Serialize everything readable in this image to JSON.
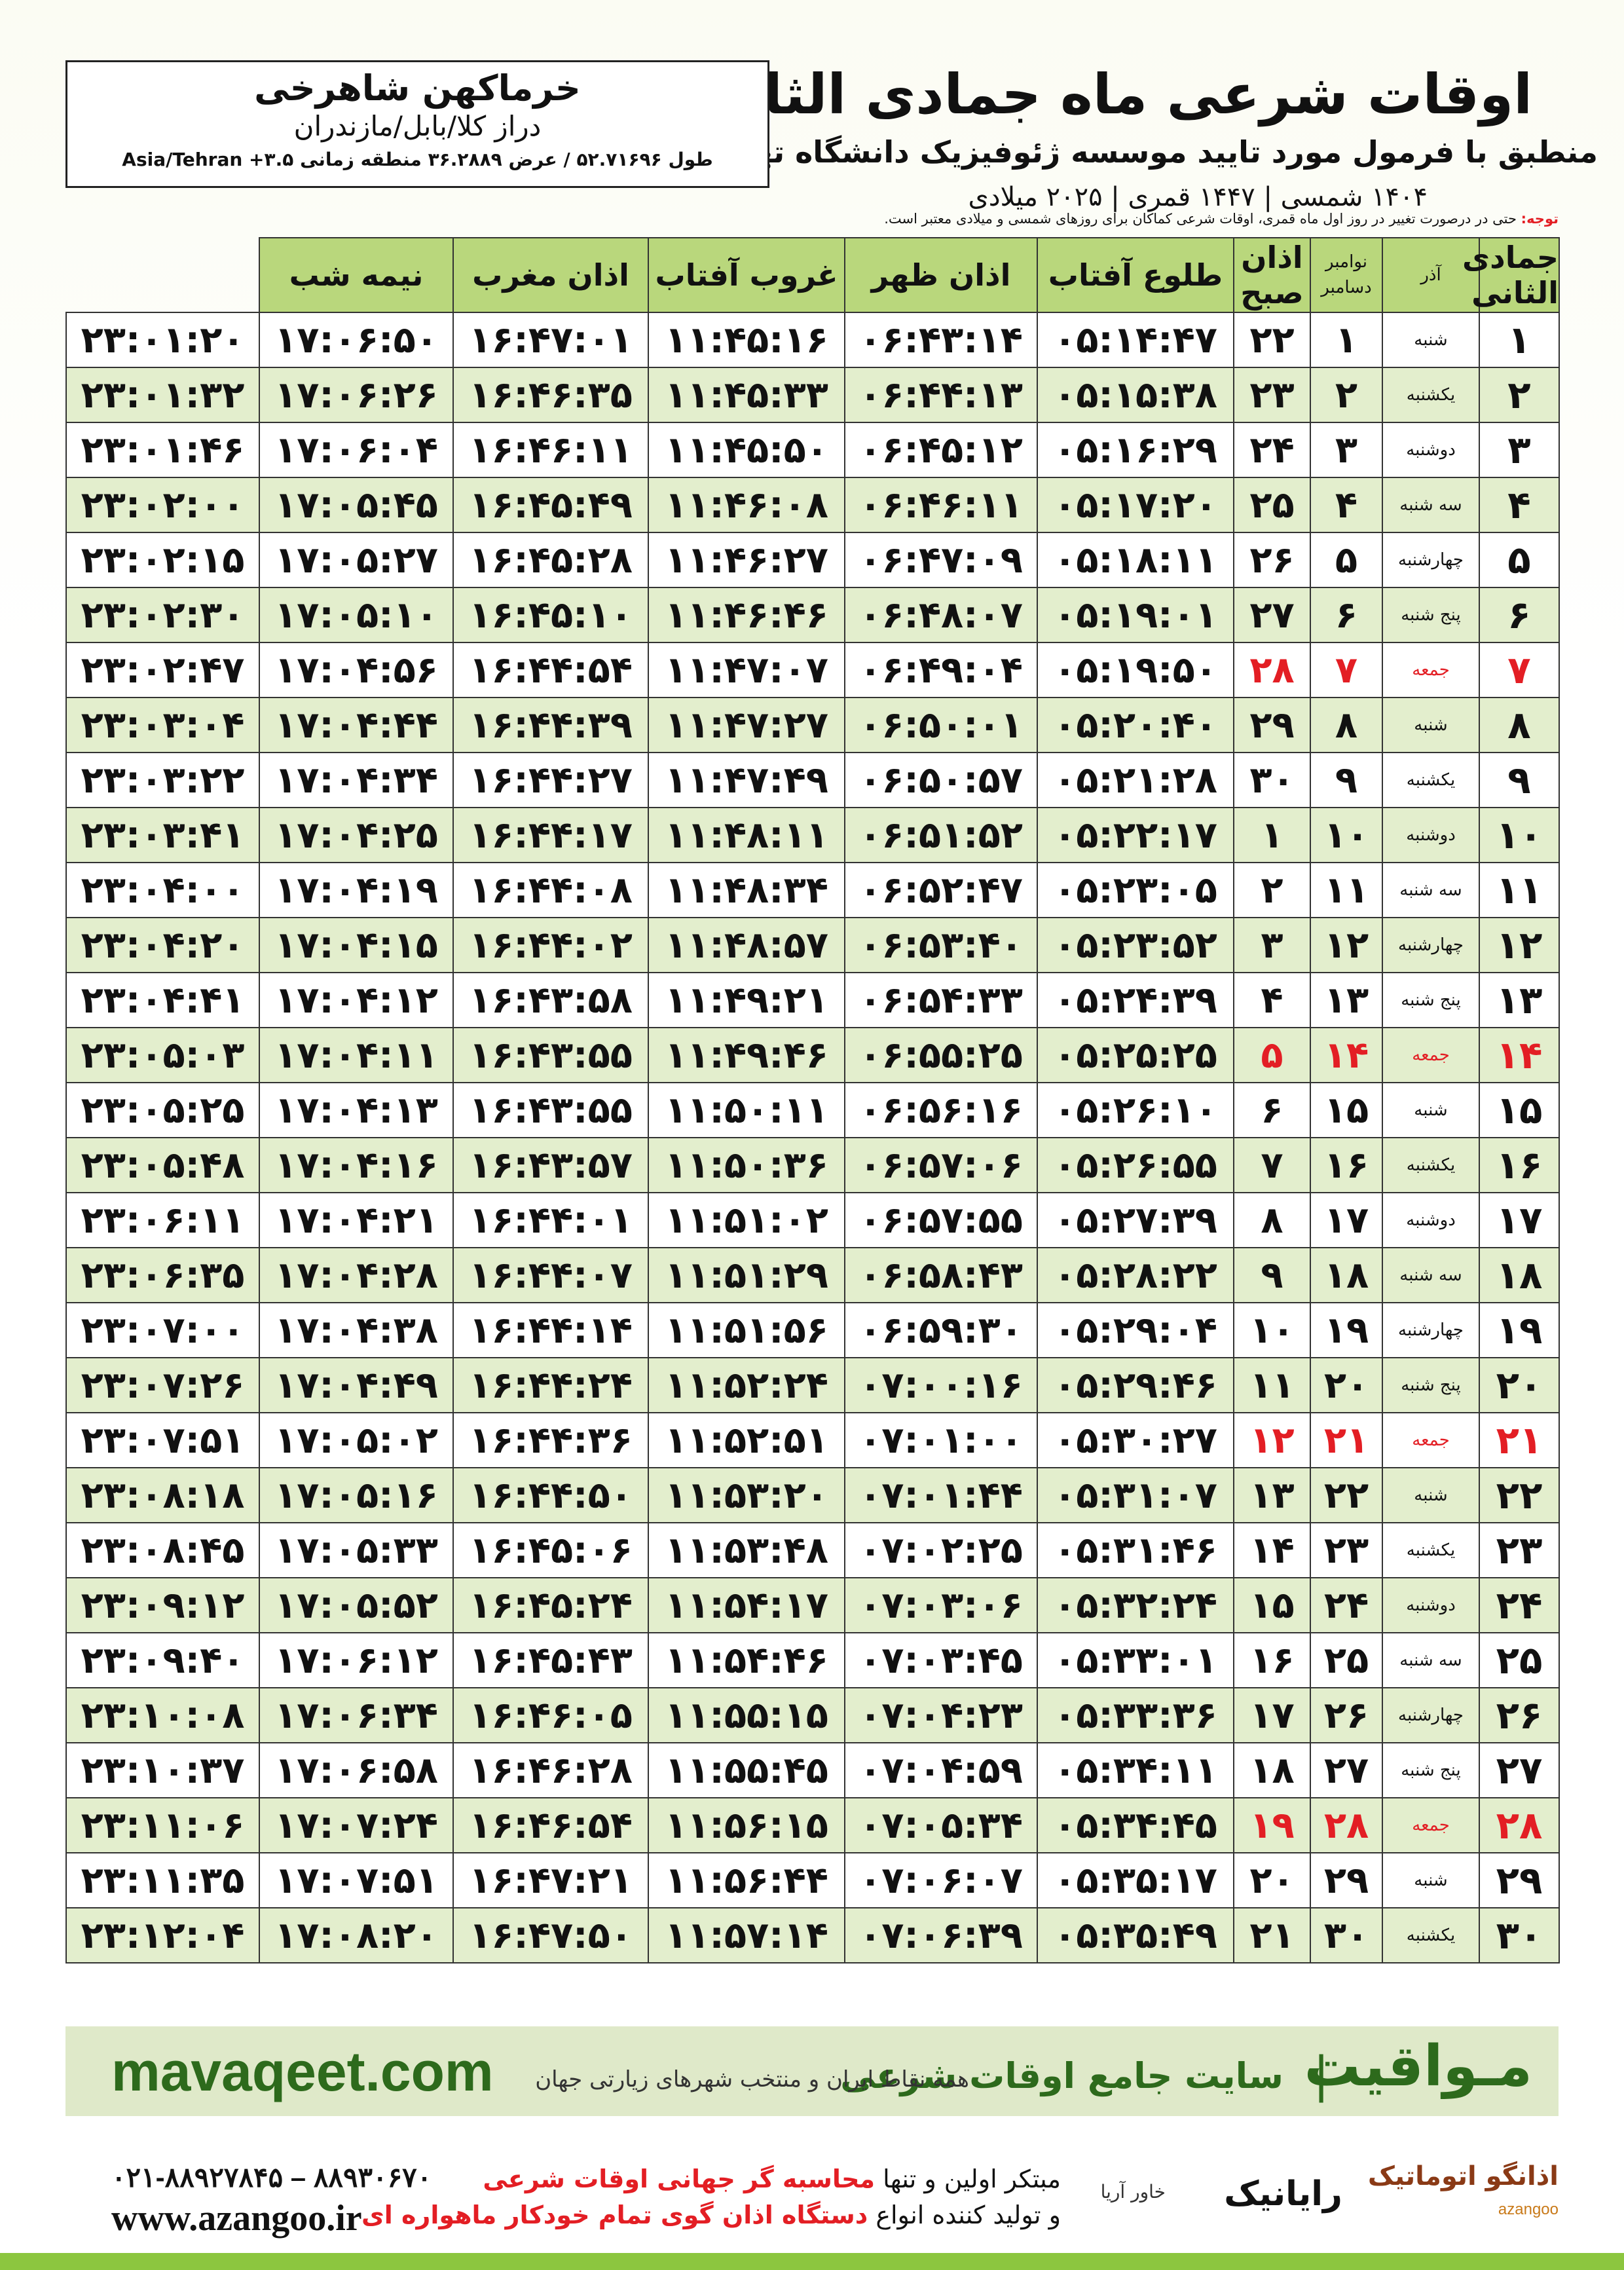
{
  "header": {
    "title": "اوقات شرعی ماه جمادی الثانی",
    "subtitle": "منطبق با فرمول مورد تایید موسسه ژئوفیزیک دانشگاه تهران",
    "years": "۱۴۰۴ شمسی | ۱۴۴۷ قمری | ۲۰۲۵ میلادی"
  },
  "location": {
    "city": "خرماکهن شاهرخی",
    "region": "دراز کلا/بابل/مازندران",
    "coords": "طول ۵۲.۷۱۶۹۶ / عرض ۳۶.۲۸۸۹ منطقه زمانی ۳.۵+ Asia/Tehran"
  },
  "note": {
    "label": "توجه:",
    "text": "حتی در درصورت تغییر در روز اول ماه قمری، اوقات شرعی کماکان برای روزهای شمسی و میلادی معتبر است."
  },
  "table": {
    "headers": [
      "جمادی الثانی",
      "آذر",
      [
        "نوامبر",
        "دسامبر"
      ],
      "اذان صبح",
      "طلوع آفتاب",
      "اذان ظهر",
      "غروب آفتاب",
      "اذان مغرب",
      "نیمه شب"
    ],
    "rows": [
      {
        "cells": [
          "۱",
          "شنبه",
          "۱",
          "۲۲",
          "۰۵:۱۴:۴۷",
          "۰۶:۴۳:۱۴",
          "۱۱:۴۵:۱۶",
          "۱۶:۴۷:۰۱",
          "۱۷:۰۶:۵۰",
          "۲۳:۰۱:۲۰"
        ]
      },
      {
        "cells": [
          "۲",
          "یکشنبه",
          "۲",
          "۲۳",
          "۰۵:۱۵:۳۸",
          "۰۶:۴۴:۱۳",
          "۱۱:۴۵:۳۳",
          "۱۶:۴۶:۳۵",
          "۱۷:۰۶:۲۶",
          "۲۳:۰۱:۳۲"
        ]
      },
      {
        "cells": [
          "۳",
          "دوشنبه",
          "۳",
          "۲۴",
          "۰۵:۱۶:۲۹",
          "۰۶:۴۵:۱۲",
          "۱۱:۴۵:۵۰",
          "۱۶:۴۶:۱۱",
          "۱۷:۰۶:۰۴",
          "۲۳:۰۱:۴۶"
        ]
      },
      {
        "cells": [
          "۴",
          "سه شنبه",
          "۴",
          "۲۵",
          "۰۵:۱۷:۲۰",
          "۰۶:۴۶:۱۱",
          "۱۱:۴۶:۰۸",
          "۱۶:۴۵:۴۹",
          "۱۷:۰۵:۴۵",
          "۲۳:۰۲:۰۰"
        ]
      },
      {
        "cells": [
          "۵",
          "چهارشنبه",
          "۵",
          "۲۶",
          "۰۵:۱۸:۱۱",
          "۰۶:۴۷:۰۹",
          "۱۱:۴۶:۲۷",
          "۱۶:۴۵:۲۸",
          "۱۷:۰۵:۲۷",
          "۲۳:۰۲:۱۵"
        ]
      },
      {
        "cells": [
          "۶",
          "پنج شنبه",
          "۶",
          "۲۷",
          "۰۵:۱۹:۰۱",
          "۰۶:۴۸:۰۷",
          "۱۱:۴۶:۴۶",
          "۱۶:۴۵:۱۰",
          "۱۷:۰۵:۱۰",
          "۲۳:۰۲:۳۰"
        ]
      },
      {
        "cells": [
          "۷",
          "جمعه",
          "۷",
          "۲۸",
          "۰۵:۱۹:۵۰",
          "۰۶:۴۹:۰۴",
          "۱۱:۴۷:۰۷",
          "۱۶:۴۴:۵۴",
          "۱۷:۰۴:۵۶",
          "۲۳:۰۲:۴۷"
        ],
        "color": "#e31e24"
      },
      {
        "cells": [
          "۸",
          "شنبه",
          "۸",
          "۲۹",
          "۰۵:۲۰:۴۰",
          "۰۶:۵۰:۰۱",
          "۱۱:۴۷:۲۷",
          "۱۶:۴۴:۳۹",
          "۱۷:۰۴:۴۴",
          "۲۳:۰۳:۰۴"
        ]
      },
      {
        "cells": [
          "۹",
          "یکشنبه",
          "۹",
          "۳۰",
          "۰۵:۲۱:۲۸",
          "۰۶:۵۰:۵۷",
          "۱۱:۴۷:۴۹",
          "۱۶:۴۴:۲۷",
          "۱۷:۰۴:۳۴",
          "۲۳:۰۳:۲۲"
        ]
      },
      {
        "cells": [
          "۱۰",
          "دوشنبه",
          "۱۰",
          "۱",
          "۰۵:۲۲:۱۷",
          "۰۶:۵۱:۵۲",
          "۱۱:۴۸:۱۱",
          "۱۶:۴۴:۱۷",
          "۱۷:۰۴:۲۵",
          "۲۳:۰۳:۴۱"
        ]
      },
      {
        "cells": [
          "۱۱",
          "سه شنبه",
          "۱۱",
          "۲",
          "۰۵:۲۳:۰۵",
          "۰۶:۵۲:۴۷",
          "۱۱:۴۸:۳۴",
          "۱۶:۴۴:۰۸",
          "۱۷:۰۴:۱۹",
          "۲۳:۰۴:۰۰"
        ]
      },
      {
        "cells": [
          "۱۲",
          "چهارشنبه",
          "۱۲",
          "۳",
          "۰۵:۲۳:۵۲",
          "۰۶:۵۳:۴۰",
          "۱۱:۴۸:۵۷",
          "۱۶:۴۴:۰۲",
          "۱۷:۰۴:۱۵",
          "۲۳:۰۴:۲۰"
        ]
      },
      {
        "cells": [
          "۱۳",
          "پنج شنبه",
          "۱۳",
          "۴",
          "۰۵:۲۴:۳۹",
          "۰۶:۵۴:۳۳",
          "۱۱:۴۹:۲۱",
          "۱۶:۴۳:۵۸",
          "۱۷:۰۴:۱۲",
          "۲۳:۰۴:۴۱"
        ]
      },
      {
        "cells": [
          "۱۴",
          "جمعه",
          "۱۴",
          "۵",
          "۰۵:۲۵:۲۵",
          "۰۶:۵۵:۲۵",
          "۱۱:۴۹:۴۶",
          "۱۶:۴۳:۵۵",
          "۱۷:۰۴:۱۱",
          "۲۳:۰۵:۰۳"
        ],
        "color": "#e31e24"
      },
      {
        "cells": [
          "۱۵",
          "شنبه",
          "۱۵",
          "۶",
          "۰۵:۲۶:۱۰",
          "۰۶:۵۶:۱۶",
          "۱۱:۵۰:۱۱",
          "۱۶:۴۳:۵۵",
          "۱۷:۰۴:۱۳",
          "۲۳:۰۵:۲۵"
        ]
      },
      {
        "cells": [
          "۱۶",
          "یکشنبه",
          "۱۶",
          "۷",
          "۰۵:۲۶:۵۵",
          "۰۶:۵۷:۰۶",
          "۱۱:۵۰:۳۶",
          "۱۶:۴۳:۵۷",
          "۱۷:۰۴:۱۶",
          "۲۳:۰۵:۴۸"
        ]
      },
      {
        "cells": [
          "۱۷",
          "دوشنبه",
          "۱۷",
          "۸",
          "۰۵:۲۷:۳۹",
          "۰۶:۵۷:۵۵",
          "۱۱:۵۱:۰۲",
          "۱۶:۴۴:۰۱",
          "۱۷:۰۴:۲۱",
          "۲۳:۰۶:۱۱"
        ]
      },
      {
        "cells": [
          "۱۸",
          "سه شنبه",
          "۱۸",
          "۹",
          "۰۵:۲۸:۲۲",
          "۰۶:۵۸:۴۳",
          "۱۱:۵۱:۲۹",
          "۱۶:۴۴:۰۷",
          "۱۷:۰۴:۲۸",
          "۲۳:۰۶:۳۵"
        ]
      },
      {
        "cells": [
          "۱۹",
          "چهارشنبه",
          "۱۹",
          "۱۰",
          "۰۵:۲۹:۰۴",
          "۰۶:۵۹:۳۰",
          "۱۱:۵۱:۵۶",
          "۱۶:۴۴:۱۴",
          "۱۷:۰۴:۳۸",
          "۲۳:۰۷:۰۰"
        ]
      },
      {
        "cells": [
          "۲۰",
          "پنج شنبه",
          "۲۰",
          "۱۱",
          "۰۵:۲۹:۴۶",
          "۰۷:۰۰:۱۶",
          "۱۱:۵۲:۲۴",
          "۱۶:۴۴:۲۴",
          "۱۷:۰۴:۴۹",
          "۲۳:۰۷:۲۶"
        ]
      },
      {
        "cells": [
          "۲۱",
          "جمعه",
          "۲۱",
          "۱۲",
          "۰۵:۳۰:۲۷",
          "۰۷:۰۱:۰۰",
          "۱۱:۵۲:۵۱",
          "۱۶:۴۴:۳۶",
          "۱۷:۰۵:۰۲",
          "۲۳:۰۷:۵۱"
        ],
        "color": "#e31e24"
      },
      {
        "cells": [
          "۲۲",
          "شنبه",
          "۲۲",
          "۱۳",
          "۰۵:۳۱:۰۷",
          "۰۷:۰۱:۴۴",
          "۱۱:۵۳:۲۰",
          "۱۶:۴۴:۵۰",
          "۱۷:۰۵:۱۶",
          "۲۳:۰۸:۱۸"
        ]
      },
      {
        "cells": [
          "۲۳",
          "یکشنبه",
          "۲۳",
          "۱۴",
          "۰۵:۳۱:۴۶",
          "۰۷:۰۲:۲۵",
          "۱۱:۵۳:۴۸",
          "۱۶:۴۵:۰۶",
          "۱۷:۰۵:۳۳",
          "۲۳:۰۸:۴۵"
        ]
      },
      {
        "cells": [
          "۲۴",
          "دوشنبه",
          "۲۴",
          "۱۵",
          "۰۵:۳۲:۲۴",
          "۰۷:۰۳:۰۶",
          "۱۱:۵۴:۱۷",
          "۱۶:۴۵:۲۴",
          "۱۷:۰۵:۵۲",
          "۲۳:۰۹:۱۲"
        ]
      },
      {
        "cells": [
          "۲۵",
          "سه شنبه",
          "۲۵",
          "۱۶",
          "۰۵:۳۳:۰۱",
          "۰۷:۰۳:۴۵",
          "۱۱:۵۴:۴۶",
          "۱۶:۴۵:۴۳",
          "۱۷:۰۶:۱۲",
          "۲۳:۰۹:۴۰"
        ]
      },
      {
        "cells": [
          "۲۶",
          "چهارشنبه",
          "۲۶",
          "۱۷",
          "۰۵:۳۳:۳۶",
          "۰۷:۰۴:۲۳",
          "۱۱:۵۵:۱۵",
          "۱۶:۴۶:۰۵",
          "۱۷:۰۶:۳۴",
          "۲۳:۱۰:۰۸"
        ]
      },
      {
        "cells": [
          "۲۷",
          "پنج شنبه",
          "۲۷",
          "۱۸",
          "۰۵:۳۴:۱۱",
          "۰۷:۰۴:۵۹",
          "۱۱:۵۵:۴۵",
          "۱۶:۴۶:۲۸",
          "۱۷:۰۶:۵۸",
          "۲۳:۱۰:۳۷"
        ]
      },
      {
        "cells": [
          "۲۸",
          "جمعه",
          "۲۸",
          "۱۹",
          "۰۵:۳۴:۴۵",
          "۰۷:۰۵:۳۴",
          "۱۱:۵۶:۱۵",
          "۱۶:۴۶:۵۴",
          "۱۷:۰۷:۲۴",
          "۲۳:۱۱:۰۶"
        ],
        "color": "#e31e24"
      },
      {
        "cells": [
          "۲۹",
          "شنبه",
          "۲۹",
          "۲۰",
          "۰۵:۳۵:۱۷",
          "۰۷:۰۶:۰۷",
          "۱۱:۵۶:۴۴",
          "۱۶:۴۷:۲۱",
          "۱۷:۰۷:۵۱",
          "۲۳:۱۱:۳۵"
        ]
      },
      {
        "cells": [
          "۳۰",
          "یکشنبه",
          "۳۰",
          "۲۱",
          "۰۵:۳۵:۴۹",
          "۰۷:۰۶:۳۹",
          "۱۱:۵۷:۱۴",
          "۱۶:۴۷:۵۰",
          "۱۷:۰۸:۲۰",
          "۲۳:۱۲:۰۴"
        ]
      }
    ]
  },
  "footer": {
    "brand": "مـواقیت",
    "site": "سایت جامع اوقات شرعی",
    "scope": "همه نقاط ایران و منتخب شهرهای زیارتی جهان",
    "url": "mavaqeet.com",
    "phones": "۰۲۱-۸۸۹۲۷۸۴۵ – ۸۸۹۳۰۶۷۰",
    "web": "www.azangoo.ir",
    "line1_a": "مبتکر اولین و تنها",
    "line1_b": "محاسبه گر جهانی اوقات شرعی",
    "line2_a": "و تولید کننده انواع",
    "line2_b": "دستگاه اذان گوی تمام خودکار ماهواره ای",
    "logo_azangoo": "اذانگو اتوماتیک",
    "logo_azangoo_en": "azangoo",
    "logo_rayanik": "رایانیک",
    "logo_khavar": "خاور آریا"
  }
}
